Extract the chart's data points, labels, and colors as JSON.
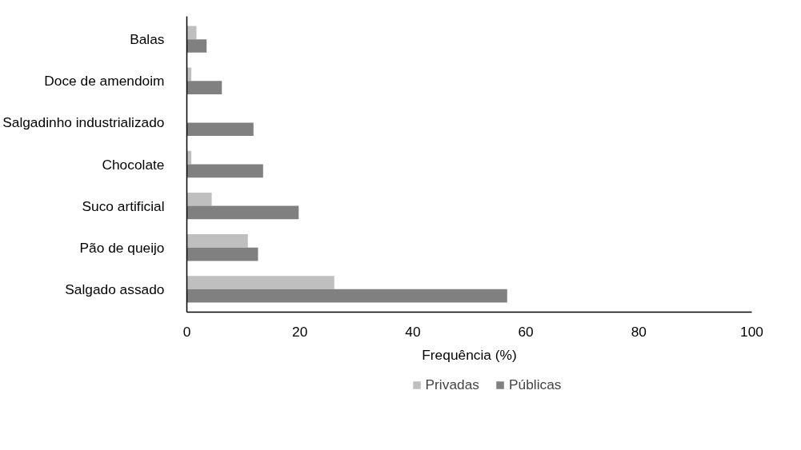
{
  "chart_data": {
    "type": "bar",
    "orientation": "horizontal",
    "xlabel": "Frequência (%)",
    "categories": [
      "Balas",
      "Doce de amendoim",
      "Salgadinho industrializado",
      "Chocolate",
      "Suco artificial",
      "Pão de queijo",
      "Salgado assado"
    ],
    "series": [
      {
        "name": "Privadas",
        "color": "#bfbfbf",
        "values": [
          1.7,
          0.8,
          0,
          0.8,
          4.4,
          10.8,
          26.1
        ]
      },
      {
        "name": "Públicas",
        "color": "#808080",
        "values": [
          3.5,
          6.2,
          11.8,
          13.5,
          19.8,
          12.6,
          56.7
        ]
      }
    ],
    "xlim": [
      0,
      100
    ],
    "xticks": [
      0,
      20,
      40,
      60,
      80,
      100
    ],
    "grid": false,
    "legend": "bottom"
  }
}
